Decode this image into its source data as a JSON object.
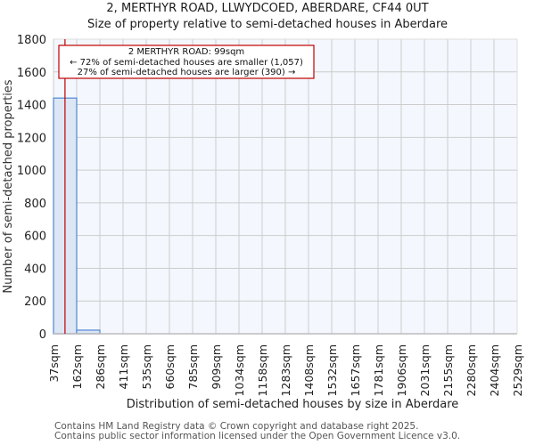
{
  "header": {
    "title": "2, MERTHYR ROAD, LLWYDCOED, ABERDARE, CF44 0UT",
    "subtitle": "Size of property relative to semi-detached houses in Aberdare"
  },
  "annotation": {
    "line1": "2 MERTHYR ROAD: 99sqm",
    "line2": "← 72% of semi-detached houses are smaller (1,057)",
    "line3": "27% of semi-detached houses are larger (390) →"
  },
  "footer": {
    "line1": "Contains HM Land Registry data © Crown copyright and database right 2025.",
    "line2": "Contains public sector information licensed under the Open Government Licence v3.0."
  },
  "colors": {
    "bar_fill": "#dce6f4",
    "bar_edge": "#5b8ed6",
    "plot_bg": "#f4f7fd",
    "grid": "#cccccc",
    "marker": "#c00000"
  },
  "chart_data": {
    "type": "bar",
    "title": "2, MERTHYR ROAD, LLWYDCOED, ABERDARE, CF44 0UT",
    "subtitle": "Size of property relative to semi-detached houses in Aberdare",
    "xlabel": "Distribution of semi-detached houses by size in Aberdare",
    "ylabel": "Number of semi-detached properties",
    "categories": [
      "37sqm",
      "162sqm",
      "286sqm",
      "411sqm",
      "535sqm",
      "660sqm",
      "785sqm",
      "909sqm",
      "1034sqm",
      "1158sqm",
      "1283sqm",
      "1408sqm",
      "1532sqm",
      "1657sqm",
      "1781sqm",
      "1906sqm",
      "2031sqm",
      "2155sqm",
      "2280sqm",
      "2404sqm",
      "2529sqm"
    ],
    "values": [
      1440,
      22,
      0,
      0,
      0,
      0,
      0,
      0,
      0,
      0,
      0,
      0,
      0,
      0,
      0,
      0,
      0,
      0,
      0,
      0
    ],
    "ylim": [
      0,
      1800
    ],
    "yticks": [
      0,
      200,
      400,
      600,
      800,
      1000,
      1200,
      1400,
      1600,
      1800
    ],
    "grid": true,
    "legend": null,
    "marker": {
      "value_sqm": 99,
      "label": "2 MERTHYR ROAD: 99sqm"
    },
    "annotations": [
      "2 MERTHYR ROAD: 99sqm",
      "← 72% of semi-detached houses are smaller (1,057)",
      "27% of semi-detached houses are larger (390) →"
    ]
  }
}
